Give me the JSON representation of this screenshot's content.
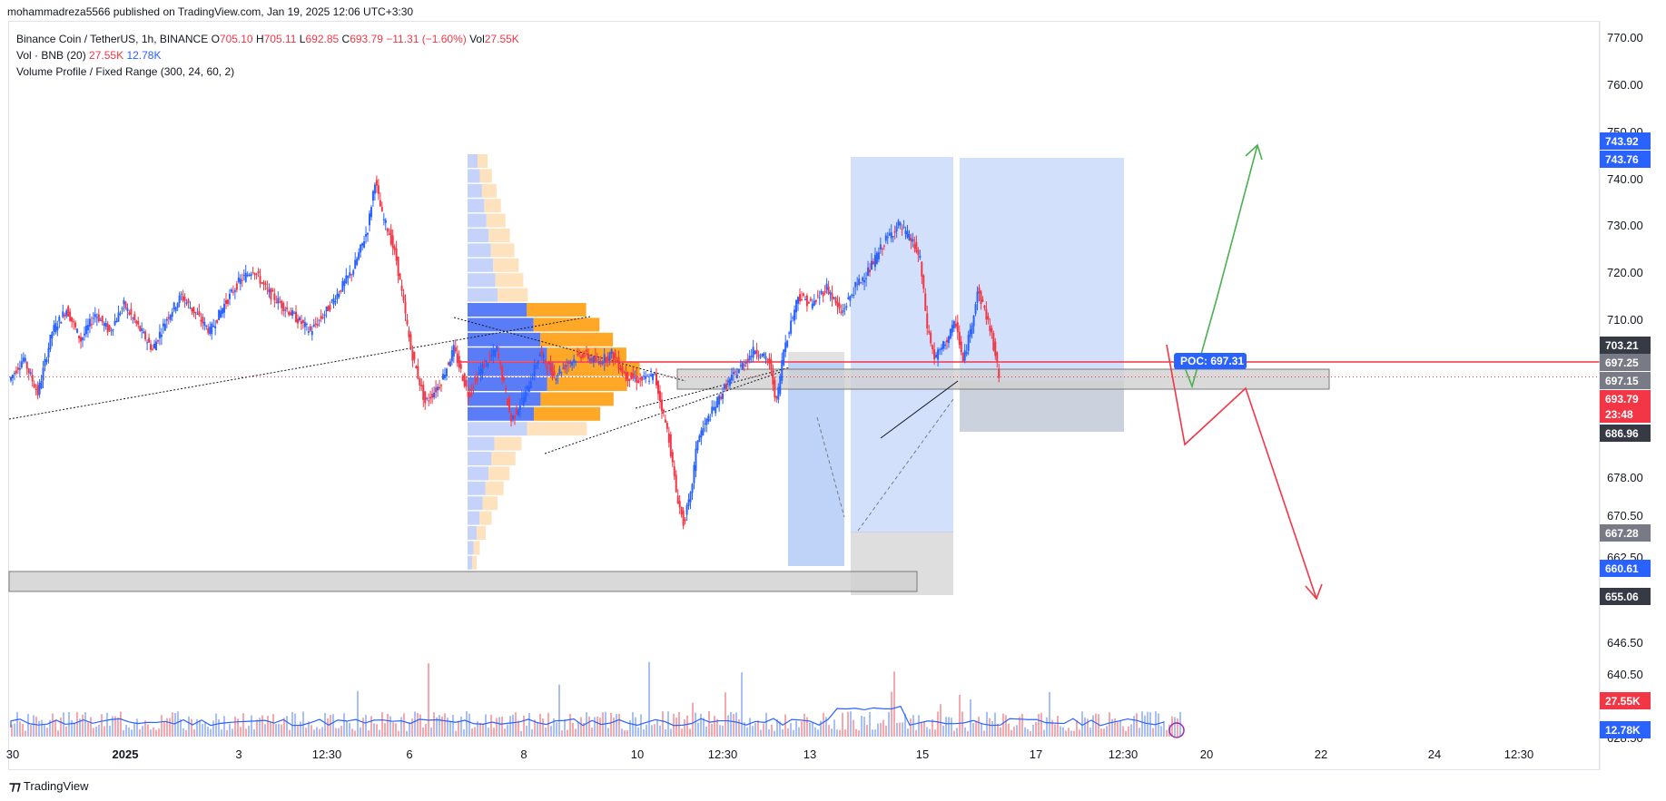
{
  "header": {
    "published": "mohammadreza5566 published on TradingView.com, Jan 19, 2025 12:06 UTC+3:30"
  },
  "legend": {
    "symbol": "Binance Coin / TetherUS, 1h, BINANCE",
    "o_label": "O",
    "o_value": "705.10",
    "h_label": "H",
    "h_value": "705.11",
    "l_label": "L",
    "l_value": "692.85",
    "c_label": "C",
    "c_value": "693.79",
    "change": "−11.31 (−1.60%)",
    "vol_label": "Vol",
    "vol_value": "27.55K",
    "vol_ind": "Vol · BNB (20)",
    "vol_ind_v1": "27.55K",
    "vol_ind_v2": "12.78K",
    "vp": "Volume Profile / Fixed Range (300, 24, 60, 2)"
  },
  "footer": {
    "brand": "TradingView"
  },
  "colors": {
    "up": "#2962ff",
    "down": "#f23645",
    "orange": "#ff9800",
    "profile_blue": "#5b7cf7",
    "green": "#4caf50",
    "gray_zone": "#9e9e9e",
    "blue_zone": "#bbd0fb"
  },
  "chart_data": {
    "type": "candlestick",
    "price_axis_ticks": [
      "770.00",
      "760.00",
      "750.00",
      "740.00",
      "730.00",
      "720.00",
      "710.00",
      "678.00",
      "670.50",
      "662.50",
      "646.50",
      "640.50",
      "628.50"
    ],
    "time_axis_ticks": [
      "30",
      "2025",
      "3",
      "12:30",
      "6",
      "8",
      "10",
      "12:30",
      "13",
      "15",
      "17",
      "12:30",
      "20",
      "22",
      "24",
      "12:30"
    ],
    "price_tags": [
      {
        "value": "743.92",
        "color": "#2962ff"
      },
      {
        "value": "743.76",
        "color": "#2962ff"
      },
      {
        "value": "703.21",
        "color": "#363a45"
      },
      {
        "value": "697.25",
        "color": "#787b86"
      },
      {
        "value": "697.15",
        "color": "#787b86"
      },
      {
        "value": "693.79",
        "color": "#f23645"
      },
      {
        "value": "23:48",
        "color": "#f23645"
      },
      {
        "value": "686.96",
        "color": "#363a45"
      },
      {
        "value": "667.28",
        "color": "#787b86"
      },
      {
        "value": "660.61",
        "color": "#2962ff"
      },
      {
        "value": "655.06",
        "color": "#363a45"
      },
      {
        "value": "27.55K",
        "color": "#f23645"
      },
      {
        "value": "12.78K",
        "color": "#2962ff"
      }
    ],
    "poc_label": "POC: 697.31",
    "key_levels": {
      "red_line": 697.15,
      "current": 693.79
    },
    "price_path": [
      {
        "t": 0,
        "p": 693
      },
      {
        "t": 2,
        "p": 698
      },
      {
        "t": 4,
        "p": 690
      },
      {
        "t": 6,
        "p": 704
      },
      {
        "t": 8,
        "p": 709
      },
      {
        "t": 10,
        "p": 702
      },
      {
        "t": 12,
        "p": 708
      },
      {
        "t": 14,
        "p": 704
      },
      {
        "t": 16,
        "p": 710
      },
      {
        "t": 18,
        "p": 705
      },
      {
        "t": 20,
        "p": 700
      },
      {
        "t": 22,
        "p": 707
      },
      {
        "t": 24,
        "p": 712
      },
      {
        "t": 26,
        "p": 708
      },
      {
        "t": 28,
        "p": 704
      },
      {
        "t": 30,
        "p": 710
      },
      {
        "t": 32,
        "p": 715
      },
      {
        "t": 34,
        "p": 718
      },
      {
        "t": 36,
        "p": 713
      },
      {
        "t": 38,
        "p": 710
      },
      {
        "t": 40,
        "p": 707
      },
      {
        "t": 42,
        "p": 704
      },
      {
        "t": 44,
        "p": 708
      },
      {
        "t": 46,
        "p": 713
      },
      {
        "t": 48,
        "p": 718
      },
      {
        "t": 50,
        "p": 727
      },
      {
        "t": 51,
        "p": 738
      },
      {
        "t": 52,
        "p": 730
      },
      {
        "t": 53,
        "p": 726
      },
      {
        "t": 54,
        "p": 720
      },
      {
        "t": 55,
        "p": 710
      },
      {
        "t": 56,
        "p": 700
      },
      {
        "t": 57,
        "p": 694
      },
      {
        "t": 58,
        "p": 688
      },
      {
        "t": 60,
        "p": 692
      },
      {
        "t": 62,
        "p": 700
      },
      {
        "t": 64,
        "p": 690
      },
      {
        "t": 66,
        "p": 696
      },
      {
        "t": 68,
        "p": 700
      },
      {
        "t": 70,
        "p": 684
      },
      {
        "t": 72,
        "p": 690
      },
      {
        "t": 74,
        "p": 699
      },
      {
        "t": 76,
        "p": 694
      },
      {
        "t": 78,
        "p": 697
      },
      {
        "t": 80,
        "p": 699
      },
      {
        "t": 82,
        "p": 697
      },
      {
        "t": 84,
        "p": 699
      },
      {
        "t": 86,
        "p": 694
      },
      {
        "t": 88,
        "p": 693
      },
      {
        "t": 90,
        "p": 694
      },
      {
        "t": 92,
        "p": 680
      },
      {
        "t": 93,
        "p": 668
      },
      {
        "t": 94,
        "p": 661
      },
      {
        "t": 95,
        "p": 667
      },
      {
        "t": 96,
        "p": 680
      },
      {
        "t": 98,
        "p": 686
      },
      {
        "t": 100,
        "p": 692
      },
      {
        "t": 102,
        "p": 696
      },
      {
        "t": 104,
        "p": 700
      },
      {
        "t": 106,
        "p": 697
      },
      {
        "t": 107,
        "p": 688
      },
      {
        "t": 108,
        "p": 700
      },
      {
        "t": 110,
        "p": 712
      },
      {
        "t": 112,
        "p": 710
      },
      {
        "t": 114,
        "p": 714
      },
      {
        "t": 116,
        "p": 708
      },
      {
        "t": 118,
        "p": 714
      },
      {
        "t": 120,
        "p": 718
      },
      {
        "t": 122,
        "p": 724
      },
      {
        "t": 124,
        "p": 728
      },
      {
        "t": 126,
        "p": 724
      },
      {
        "t": 127,
        "p": 720
      },
      {
        "t": 128,
        "p": 705
      },
      {
        "t": 129,
        "p": 698
      },
      {
        "t": 130,
        "p": 700
      },
      {
        "t": 132,
        "p": 706
      },
      {
        "t": 133,
        "p": 697
      },
      {
        "t": 134,
        "p": 704
      },
      {
        "t": 135,
        "p": 713
      },
      {
        "t": 136,
        "p": 709
      },
      {
        "t": 137,
        "p": 703
      },
      {
        "t": 138,
        "p": 694
      }
    ]
  }
}
